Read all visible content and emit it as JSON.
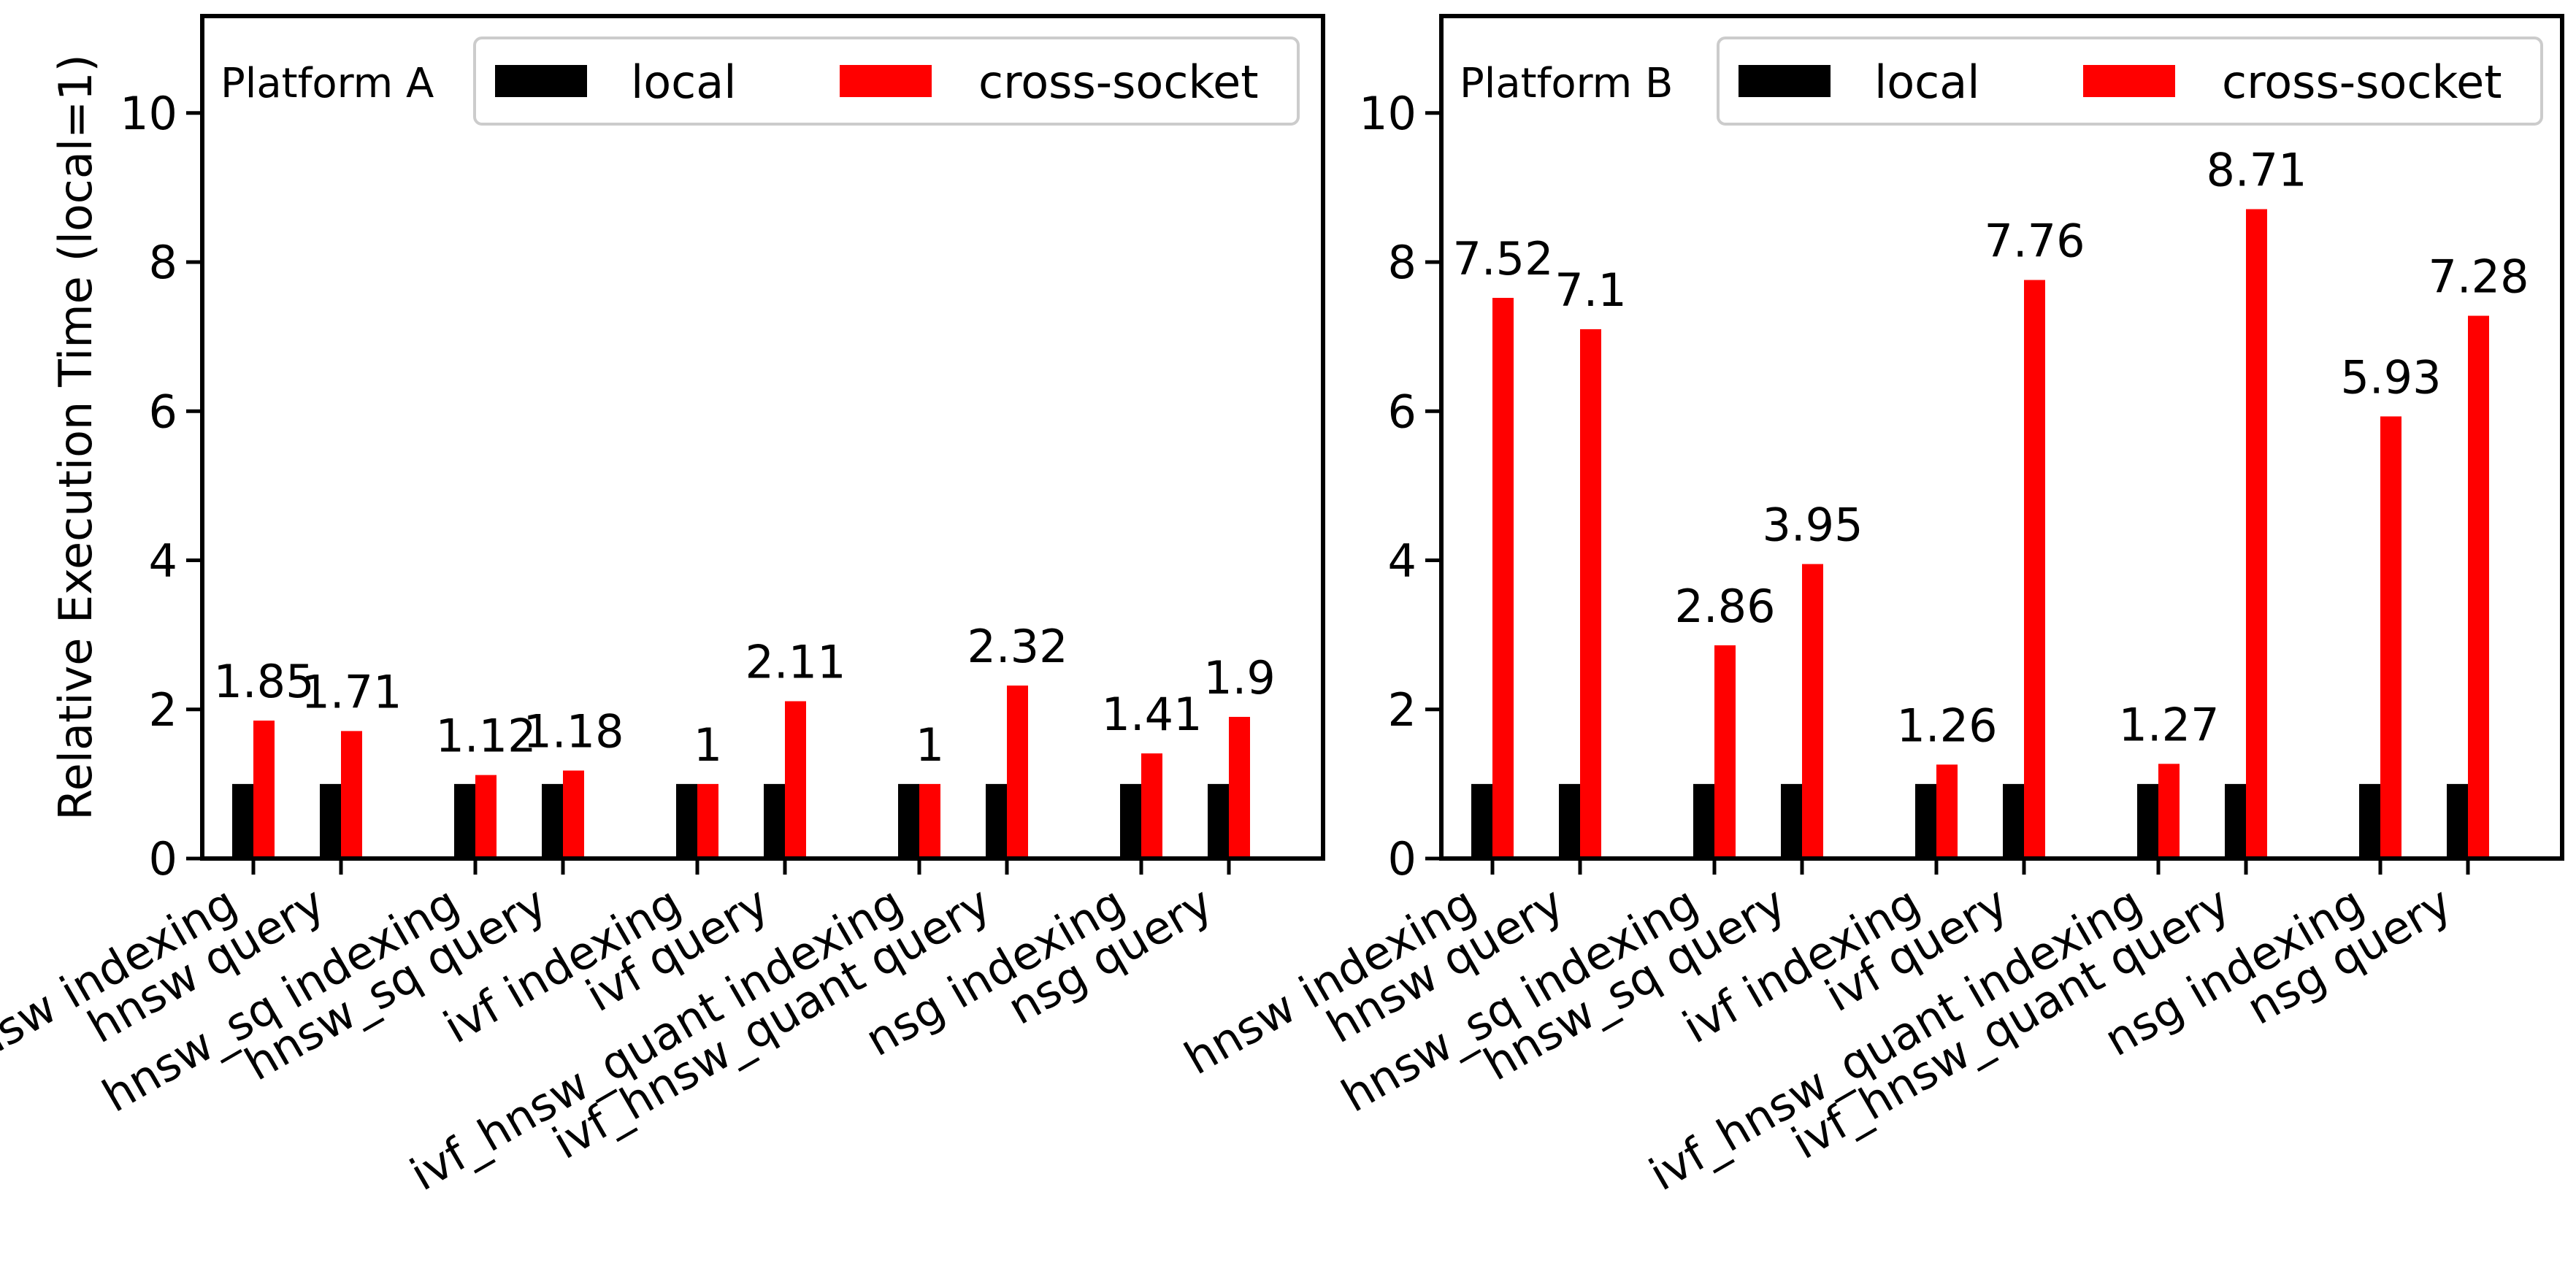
{
  "chart_data": [
    {
      "type": "bar",
      "panel_label": "Platform A",
      "ylabel": "Relative Execution Time (local=1)",
      "ylim": [
        0,
        11.3
      ],
      "yticks": [
        "0",
        "2",
        "4",
        "6",
        "8",
        "10"
      ],
      "categories": [
        "hnsw indexing",
        "hnsw query",
        "hnsw_sq indexing",
        "hnsw_sq query",
        "ivf indexing",
        "ivf query",
        "ivf_hnsw_quant indexing",
        "ivf_hnsw_quant query",
        "nsg indexing",
        "nsg query"
      ],
      "series": [
        {
          "name": "local",
          "color": "#000000",
          "values": [
            1,
            1,
            1,
            1,
            1,
            1,
            1,
            1,
            1,
            1
          ]
        },
        {
          "name": "cross-socket",
          "color": "#ff0000",
          "values": [
            1.85,
            1.71,
            1.12,
            1.18,
            1,
            2.11,
            1,
            2.32,
            1.41,
            1.9
          ],
          "labels": [
            "1.85",
            "1.71",
            "1.12",
            "1.18",
            "1",
            "2.11",
            "1",
            "2.32",
            "1.41",
            "1.9"
          ]
        }
      ],
      "legend_placement": "top-right",
      "grid": false
    },
    {
      "type": "bar",
      "panel_label": "Platform B",
      "ylabel": "",
      "ylim": [
        0,
        11.3
      ],
      "yticks": [
        "0",
        "2",
        "4",
        "6",
        "8",
        "10"
      ],
      "categories": [
        "hnsw indexing",
        "hnsw query",
        "hnsw_sq indexing",
        "hnsw_sq query",
        "ivf indexing",
        "ivf query",
        "ivf_hnsw_quant indexing",
        "ivf_hnsw_quant query",
        "nsg indexing",
        "nsg query"
      ],
      "series": [
        {
          "name": "local",
          "color": "#000000",
          "values": [
            1,
            1,
            1,
            1,
            1,
            1,
            1,
            1,
            1,
            1
          ]
        },
        {
          "name": "cross-socket",
          "color": "#ff0000",
          "values": [
            7.52,
            7.1,
            2.86,
            3.95,
            1.26,
            7.76,
            1.27,
            8.71,
            5.93,
            7.28
          ],
          "labels": [
            "7.52",
            "7.1",
            "2.86",
            "3.95",
            "1.26",
            "7.76",
            "1.27",
            "8.71",
            "5.93",
            "7.28"
          ]
        }
      ],
      "legend_placement": "top-right",
      "grid": false
    }
  ]
}
